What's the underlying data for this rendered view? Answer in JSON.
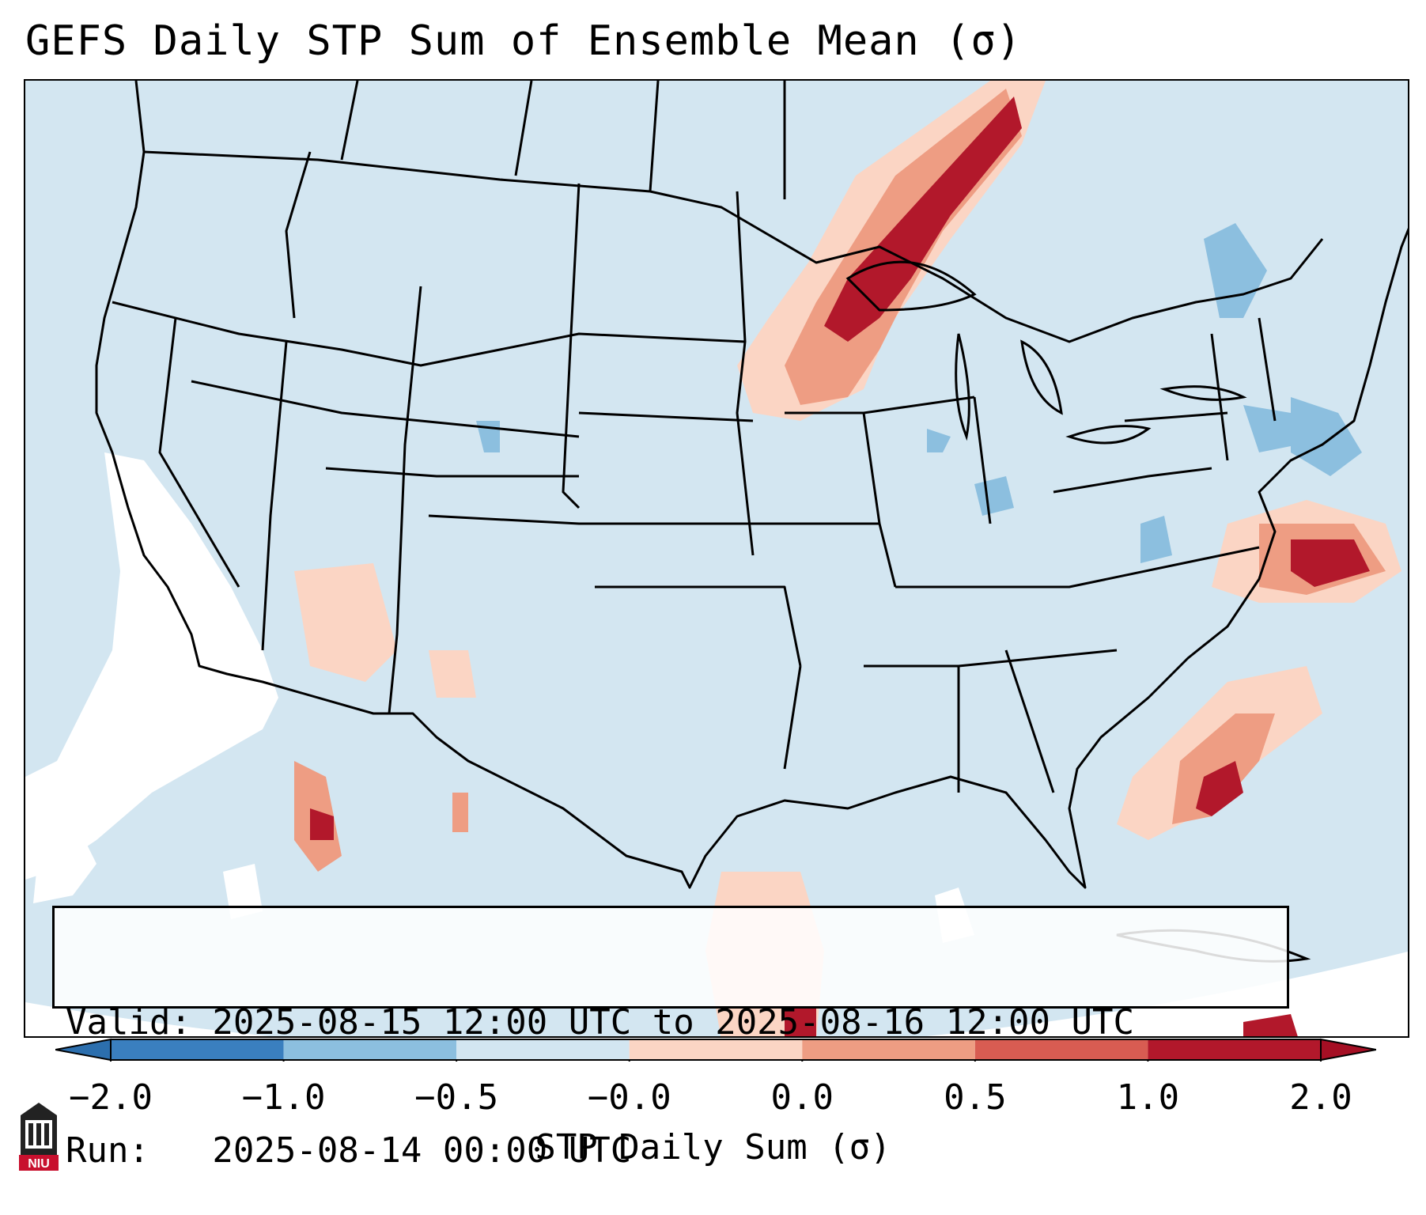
{
  "title": "GEFS Daily STP Sum of Ensemble Mean (σ)",
  "info": {
    "valid_line": "Valid: 2025-08-15 12:00 UTC to 2025-08-16 12:00 UTC",
    "run_line": "Run:   2025-08-14 00:00 UTC"
  },
  "colorbar": {
    "label": "STP Daily Sum (σ)",
    "ticks": [
      "−2.0",
      "−1.0",
      "−0.5",
      "−0.0",
      "0.0",
      "0.5",
      "1.0",
      "2.0"
    ],
    "colors": [
      "#3a7fbf",
      "#8cbfdf",
      "#d3e6f1",
      "#ffffff",
      "#fbd5c4",
      "#ee9d83",
      "#d85c52",
      "#b2182b"
    ],
    "extend": "both"
  },
  "map": {
    "background_color": "#d3e6f1",
    "ocean_outside_color": "#ffffff"
  },
  "logo": {
    "text": "NIU",
    "color": "#c8102e"
  }
}
